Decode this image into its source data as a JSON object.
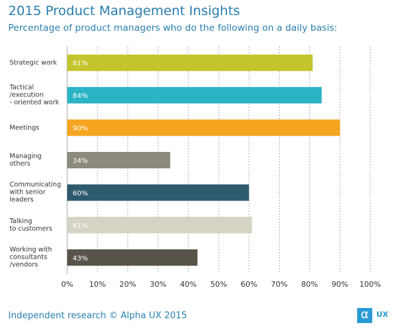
{
  "title": "2015 Product Management Insights",
  "subtitle": "Percentage of product managers who do the following on a daily basis:",
  "footer": "Independent research © Alpha UX 2015",
  "logo": {
    "symbol": "α",
    "text": "UX"
  },
  "chart_data": {
    "type": "bar",
    "orientation": "horizontal",
    "categories": [
      "Strategic work",
      "Tactical\n/execution\n- oriented work",
      "Meetings",
      "Managing\nothers",
      "Communicating\nwith senior\nleaders",
      "Talking\nto customers",
      "Working with\nconsultants\n/vendors"
    ],
    "values": [
      81,
      84,
      90,
      34,
      60,
      61,
      43
    ],
    "value_labels": [
      "81%",
      "84%",
      "90%",
      "34%",
      "60%",
      "61%",
      "43%"
    ],
    "colors": [
      "#c4c42c",
      "#2bb4c6",
      "#f5a51f",
      "#8b8a7c",
      "#2e5a6d",
      "#d5d3c4",
      "#59544a"
    ],
    "xlim": [
      0,
      100
    ],
    "xticks": [
      {
        "value": 0,
        "label": "0%"
      },
      {
        "value": 10,
        "label": "10%"
      },
      {
        "value": 20,
        "label": "20%"
      },
      {
        "value": 30,
        "label": "30%"
      },
      {
        "value": 40,
        "label": "40%"
      },
      {
        "value": 50,
        "label": "50%"
      },
      {
        "value": 60,
        "label": "60%"
      },
      {
        "value": 70,
        "label": "70%"
      },
      {
        "value": 80,
        "label": "80%"
      },
      {
        "value": 90,
        "label": "90%"
      },
      {
        "value": 100,
        "label": "100%"
      }
    ],
    "grid": true
  }
}
